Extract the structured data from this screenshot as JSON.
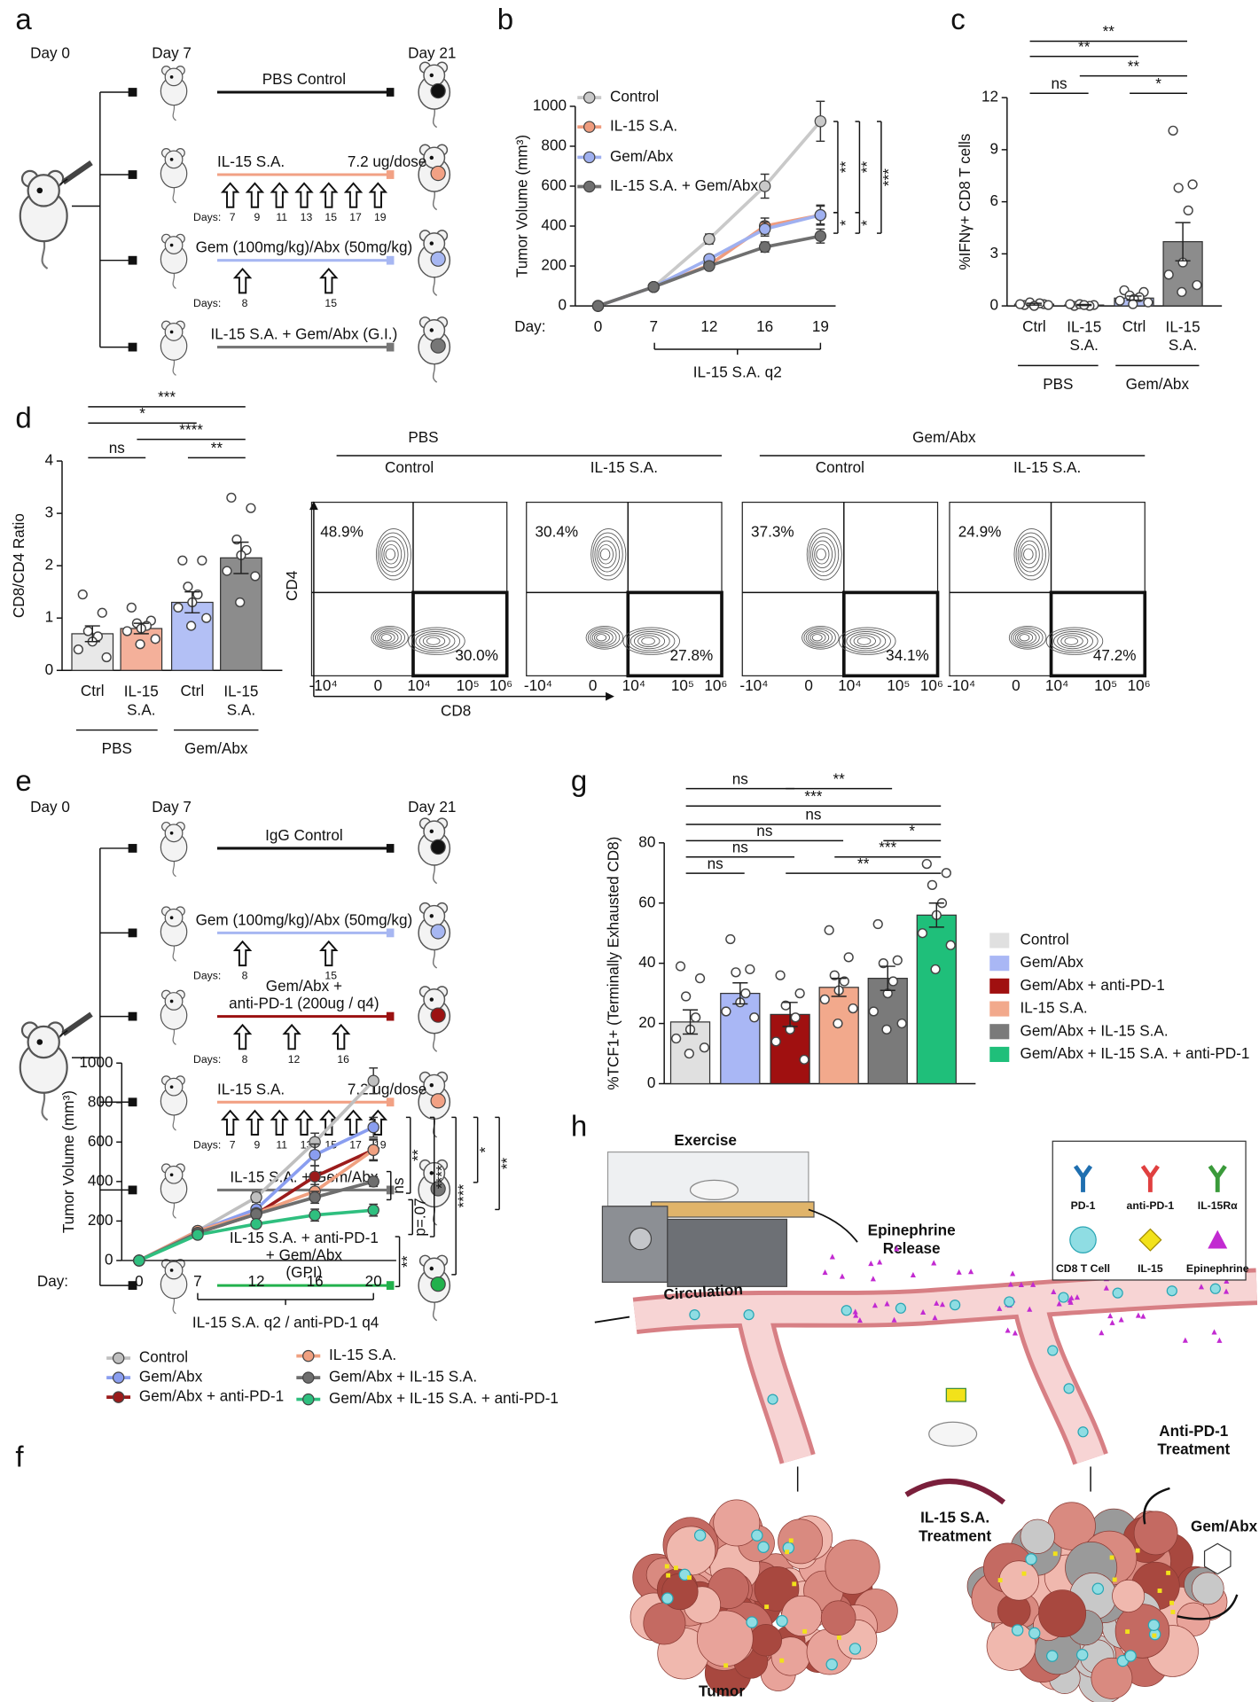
{
  "panel_labels": [
    "a",
    "b",
    "c",
    "d",
    "e",
    "f",
    "g",
    "h"
  ],
  "schematic_a": {
    "day_labels": [
      "Day 0",
      "Day 7",
      "Day 21"
    ],
    "days_label": "Days:",
    "rows": [
      {
        "text": [
          "PBS Control"
        ],
        "color": "#111111"
      },
      {
        "text": [
          "IL-15 S.A."
        ],
        "dose": "7.2 ug/dose",
        "days": [
          7,
          9,
          11,
          13,
          15,
          17,
          19
        ],
        "color": "#f2a184"
      },
      {
        "text": [
          "Gem (100mg/kg)/Abx (50mg/kg)"
        ],
        "days": [
          8,
          15
        ],
        "color": "#a7b7f2"
      },
      {
        "text": [
          "IL-15 S.A. + Gem/Abx (G.I.)"
        ],
        "color": "#777777"
      }
    ]
  },
  "schematic_e": {
    "day_labels": [
      "Day 0",
      "Day 7",
      "Day 21"
    ],
    "days_label": "Days:",
    "rows": [
      {
        "text": [
          "IgG Control"
        ],
        "color": "#111111"
      },
      {
        "text": [
          "Gem (100mg/kg)/Abx (50mg/kg)"
        ],
        "days": [
          8,
          15
        ],
        "color": "#a7b7f2"
      },
      {
        "text": [
          "Gem/Abx +",
          "anti-PD-1 (200ug / q4)"
        ],
        "days": [
          8,
          12,
          16
        ],
        "color": "#9b1111"
      },
      {
        "text": [
          "IL-15 S.A."
        ],
        "dose": "7.2 ug/dose",
        "days": [
          7,
          9,
          11,
          13,
          15,
          17,
          19
        ],
        "color": "#f2a184"
      },
      {
        "text": [
          "IL-15 S.A. + Gem/Abx"
        ],
        "color": "#777777"
      },
      {
        "text": [
          "IL-15 S.A. + anti-PD-1",
          "+ Gem/Abx",
          "(GPI)"
        ],
        "color": "#22b14c"
      }
    ]
  },
  "chart_data": [
    {
      "type": "line",
      "ylabel": "Tumor Volume (mm³)",
      "x_label": "Day:",
      "categories": [
        "0",
        "7",
        "12",
        "16",
        "19"
      ],
      "ylim": [
        0,
        1000
      ],
      "yticks": [
        0,
        200,
        400,
        600,
        800,
        1000
      ],
      "series": [
        {
          "name": "Control",
          "color": "#c9c9c9",
          "values": [
            0,
            95,
            335,
            600,
            925
          ],
          "errors": [
            0,
            8,
            25,
            60,
            100
          ]
        },
        {
          "name": "IL-15 S.A.",
          "color": "#ef9c7e",
          "values": [
            0,
            95,
            205,
            400,
            455
          ],
          "errors": [
            0,
            6,
            15,
            40,
            45
          ]
        },
        {
          "name": "Gem/Abx",
          "color": "#9fb0f0",
          "values": [
            0,
            95,
            235,
            385,
            455
          ],
          "errors": [
            0,
            6,
            15,
            35,
            50
          ]
        },
        {
          "name": "IL-15 S.A. + Gem/Abx",
          "color": "#6f6f6f",
          "values": [
            0,
            95,
            200,
            295,
            350
          ],
          "errors": [
            0,
            6,
            15,
            25,
            35
          ]
        }
      ],
      "annotations": [
        "**",
        "**",
        "***",
        "*",
        "*"
      ],
      "footnote": "IL-15 S.A. q2"
    },
    {
      "type": "bar",
      "ylabel": "%IFNγ+ CD8 T cells",
      "categories": [
        "Ctrl",
        "IL-15 S.A.",
        "Ctrl",
        "IL-15 S.A."
      ],
      "groups": [
        "PBS",
        "Gem/Abx"
      ],
      "values": [
        0.1,
        0.05,
        0.45,
        3.7
      ],
      "errors": [
        0.05,
        0.03,
        0.12,
        1.1
      ],
      "colors": [
        "#e8e8e8",
        "#f4b09a",
        "#b3c0f5",
        "#8c8c8c"
      ],
      "points": [
        [
          0.05,
          0.1,
          0.2,
          0.15,
          0,
          0.1,
          0.05
        ],
        [
          0,
          0.05,
          0.1,
          0,
          0.05,
          0.1
        ],
        [
          0.9,
          0.8,
          0.6,
          0.5,
          0.4,
          0.3,
          0.2,
          0.1
        ],
        [
          10.1,
          7,
          6.8,
          5.5,
          2.5,
          1.8,
          1.2,
          0.8
        ]
      ],
      "ylim": [
        0,
        12
      ],
      "yticks": [
        0,
        3,
        6,
        9,
        12
      ],
      "annotations": [
        "**",
        "**",
        "**",
        "ns",
        "*"
      ]
    },
    {
      "type": "bar",
      "ylabel": "CD8/CD4 Ratio",
      "categories": [
        "Ctrl",
        "IL-15 S.A.",
        "Ctrl",
        "IL-15 S.A."
      ],
      "groups": [
        "PBS",
        "Gem/Abx"
      ],
      "values": [
        0.7,
        0.8,
        1.3,
        2.15
      ],
      "errors": [
        0.15,
        0.1,
        0.2,
        0.3
      ],
      "colors": [
        "#e8e8e8",
        "#f4b09a",
        "#b3c0f5",
        "#8c8c8c"
      ],
      "points": [
        [
          1.45,
          1.1,
          0.75,
          0.65,
          0.55,
          0.4,
          0.25
        ],
        [
          1.2,
          0.95,
          0.9,
          0.85,
          0.8,
          0.75,
          0.6,
          0.5
        ],
        [
          2.1,
          2.1,
          1.6,
          1.45,
          1.3,
          1.2,
          1,
          0.85
        ],
        [
          3.3,
          3.1,
          2.5,
          2.3,
          2.2,
          1.9,
          1.8,
          1.3
        ]
      ],
      "ylim": [
        0,
        4
      ],
      "yticks": [
        0,
        1,
        2,
        3,
        4
      ],
      "annotations": [
        "***",
        "*",
        "****",
        "ns",
        "**"
      ]
    },
    {
      "type": "line",
      "ylabel": "Tumor Volume (mm³)",
      "x_label": "Day:",
      "categories": [
        "0",
        "7",
        "12",
        "16",
        "20"
      ],
      "ylim": [
        0,
        1000
      ],
      "yticks": [
        0,
        200,
        400,
        600,
        800,
        1000
      ],
      "series": [
        {
          "name": "Control",
          "color": "#bfbfbf",
          "values": [
            0,
            150,
            320,
            600,
            910
          ],
          "errors": [
            0,
            10,
            25,
            45,
            65
          ]
        },
        {
          "name": "Gem/Abx",
          "color": "#8a9ef0",
          "values": [
            0,
            150,
            260,
            535,
            675
          ],
          "errors": [
            0,
            10,
            20,
            55,
            50
          ]
        },
        {
          "name": "Gem/Abx + anti-PD-1",
          "color": "#9b1b1b",
          "values": [
            0,
            140,
            235,
            425,
            560
          ],
          "errors": [
            0,
            10,
            20,
            55,
            55
          ]
        },
        {
          "name": "IL-15 S.A.",
          "color": "#f0a080",
          "values": [
            0,
            150,
            240,
            350,
            560
          ],
          "errors": [
            0,
            10,
            20,
            35,
            50
          ]
        },
        {
          "name": "Gem/Abx + IL-15 S.A.",
          "color": "#6e6e6e",
          "values": [
            0,
            140,
            235,
            320,
            400
          ],
          "errors": [
            0,
            10,
            20,
            30,
            25
          ]
        },
        {
          "name": "Gem/Abx + IL-15 S.A. + anti-PD-1",
          "color": "#2fbf7f",
          "values": [
            0,
            130,
            185,
            230,
            255
          ],
          "errors": [
            0,
            10,
            15,
            30,
            30
          ]
        }
      ],
      "annotations": [
        "**",
        "****",
        "*",
        "**",
        "****",
        "ns",
        "p=.07",
        "**"
      ],
      "footnote": "IL-15 S.A. q2 / anti-PD-1 q4"
    },
    {
      "type": "bar",
      "ylabel": "%TCF1+ (Terminally Exhausted CD8)",
      "categories": [
        "Control",
        "Gem/Abx",
        "Gem/Abx + anti-PD-1",
        "IL-15 S.A.",
        "Gem/Abx + IL-15 S.A.",
        "Gem/Abx + IL-15 S.A. + anti-PD-1"
      ],
      "values": [
        20.5,
        30,
        23,
        32,
        35,
        56
      ],
      "errors": [
        4,
        3.5,
        4,
        3,
        4,
        4
      ],
      "colors": [
        "#e0e0e0",
        "#a9b7f5",
        "#a01010",
        "#f2a98c",
        "#7a7a7a",
        "#1fbf7a"
      ],
      "points": [
        [
          39,
          35,
          29,
          22,
          18,
          15,
          12,
          10
        ],
        [
          48,
          38,
          37,
          30,
          27,
          24,
          22
        ],
        [
          36,
          30,
          26,
          22,
          18,
          14,
          8
        ],
        [
          51,
          42,
          36,
          34,
          31,
          28,
          25,
          20
        ],
        [
          53,
          41,
          40,
          34,
          30,
          24,
          20,
          18
        ],
        [
          73,
          70,
          66,
          60,
          56,
          50,
          46,
          38
        ]
      ],
      "ylim": [
        0,
        80
      ],
      "yticks": [
        0,
        20,
        40,
        60,
        80
      ],
      "legend": true,
      "annotations": [
        "ns",
        "**",
        "***",
        "ns",
        "ns",
        "*",
        "ns",
        "***",
        "ns",
        "**"
      ]
    }
  ],
  "flow_d": {
    "headers": [
      "PBS",
      "Gem/Abx"
    ],
    "panels": [
      {
        "title": "Control",
        "upper_left": "48.9%",
        "lower_right": "30.0%"
      },
      {
        "title": "IL-15 S.A.",
        "upper_left": "30.4%",
        "lower_right": "27.8%"
      },
      {
        "title": "Control",
        "upper_left": "37.3%",
        "lower_right": "34.1%"
      },
      {
        "title": "IL-15 S.A.",
        "upper_left": "24.9%",
        "lower_right": "47.2%"
      }
    ],
    "y_label": "CD4",
    "x_label": "CD8",
    "ticks": [
      "-10⁴",
      "0",
      "10⁴",
      "10⁵",
      "10⁶"
    ]
  },
  "diagram_h": {
    "exercise": "Exercise",
    "epinephrine": [
      "Epinephrine",
      "Release"
    ],
    "circulation": "Circulation",
    "il15_treatment": [
      "IL-15 S.A.",
      "Treatment"
    ],
    "antipd1_treatment": [
      "Anti-PD-1",
      "Treatment"
    ],
    "gem": "Gem/Abx",
    "tumor": "Tumor",
    "legend": [
      "PD-1",
      "anti-PD-1",
      "IL-15Rα",
      "CD8 T Cell",
      "IL-15",
      "Epinephrine"
    ]
  }
}
